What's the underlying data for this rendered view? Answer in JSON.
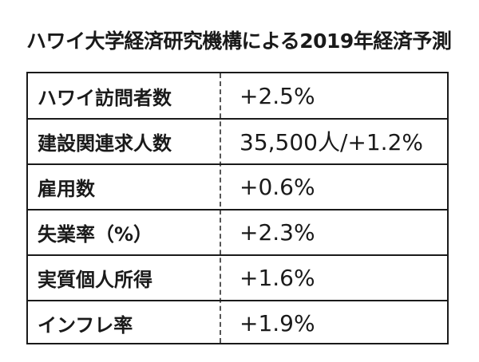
{
  "title": "ハワイ大学経済研究機構による2019年経済予測",
  "rows": [
    {
      "label": "ハワイ訪問者数",
      "value": "+2.5%"
    },
    {
      "label": "建設関連求人数",
      "value": "35,500人/+1.2%"
    },
    {
      "label": "雇用数",
      "value": "+0.6%"
    },
    {
      "label": "失業率（%）",
      "value": "+2.3%"
    },
    {
      "label": "実質個人所得",
      "value": "+1.6%"
    },
    {
      "label": "インフレ率",
      "value": "+1.9%"
    }
  ]
}
